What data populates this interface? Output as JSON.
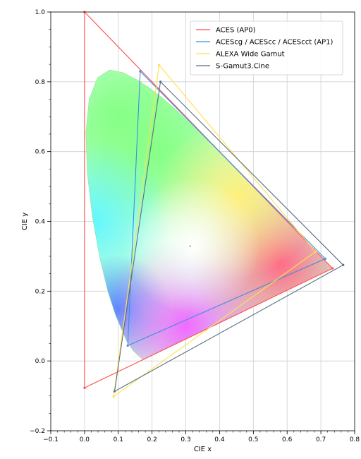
{
  "chart_data": {
    "type": "line",
    "xlabel": "CIE x",
    "ylabel": "CIE y",
    "xlim": [
      -0.1,
      0.8
    ],
    "ylim": [
      -0.2,
      1.0
    ],
    "xticks": [
      "−0.1",
      "0.0",
      "0.1",
      "0.2",
      "0.3",
      "0.4",
      "0.5",
      "0.6",
      "0.7",
      "0.8"
    ],
    "yticks": [
      "−0.2",
      "0.0",
      "0.2",
      "0.4",
      "0.6",
      "0.8",
      "1.0"
    ],
    "grid": true,
    "legend_position": "top-right",
    "white_point": [
      0.3127,
      0.329
    ],
    "spectral_locus": [
      [
        0.1741,
        0.005
      ],
      [
        0.1738,
        0.0049
      ],
      [
        0.1733,
        0.0048
      ],
      [
        0.1726,
        0.0048
      ],
      [
        0.1714,
        0.0051
      ],
      [
        0.1689,
        0.0069
      ],
      [
        0.1644,
        0.0109
      ],
      [
        0.1566,
        0.0177
      ],
      [
        0.144,
        0.0297
      ],
      [
        0.1241,
        0.0578
      ],
      [
        0.0913,
        0.1327
      ],
      [
        0.0687,
        0.2007
      ],
      [
        0.0454,
        0.295
      ],
      [
        0.0235,
        0.4127
      ],
      [
        0.0082,
        0.5384
      ],
      [
        0.0039,
        0.6548
      ],
      [
        0.0139,
        0.7502
      ],
      [
        0.0389,
        0.812
      ],
      [
        0.0743,
        0.8338
      ],
      [
        0.1142,
        0.8262
      ],
      [
        0.1547,
        0.8059
      ],
      [
        0.1929,
        0.7816
      ],
      [
        0.2296,
        0.7543
      ],
      [
        0.2658,
        0.7243
      ],
      [
        0.3016,
        0.6923
      ],
      [
        0.3373,
        0.6589
      ],
      [
        0.3731,
        0.6245
      ],
      [
        0.4087,
        0.5896
      ],
      [
        0.4441,
        0.5547
      ],
      [
        0.4788,
        0.5202
      ],
      [
        0.5125,
        0.4866
      ],
      [
        0.5448,
        0.4544
      ],
      [
        0.5752,
        0.4242
      ],
      [
        0.6029,
        0.3965
      ],
      [
        0.627,
        0.3725
      ],
      [
        0.6482,
        0.3514
      ],
      [
        0.6658,
        0.334
      ],
      [
        0.6801,
        0.3197
      ],
      [
        0.6915,
        0.3083
      ],
      [
        0.7006,
        0.2993
      ],
      [
        0.7079,
        0.292
      ],
      [
        0.714,
        0.2859
      ],
      [
        0.719,
        0.2809
      ],
      [
        0.723,
        0.277
      ],
      [
        0.726,
        0.274
      ],
      [
        0.7283,
        0.2717
      ],
      [
        0.73,
        0.27
      ],
      [
        0.7311,
        0.2689
      ],
      [
        0.732,
        0.268
      ],
      [
        0.7327,
        0.2673
      ],
      [
        0.7334,
        0.2666
      ],
      [
        0.734,
        0.266
      ],
      [
        0.7344,
        0.2656
      ],
      [
        0.7346,
        0.2654
      ],
      [
        0.7347,
        0.2653
      ]
    ],
    "series": [
      {
        "name": "ACES (AP0)",
        "color": "#ff4d4d",
        "points": [
          [
            0.7347,
            0.2653
          ],
          [
            0.0,
            1.0
          ],
          [
            0.0001,
            -0.077
          ]
        ]
      },
      {
        "name": "ACEScg / ACEScc / ACEScct (AP1)",
        "color": "#3a8fe0",
        "points": [
          [
            0.713,
            0.293
          ],
          [
            0.165,
            0.83
          ],
          [
            0.128,
            0.044
          ]
        ]
      },
      {
        "name": "ALEXA Wide Gamut",
        "color": "#ffe14d",
        "points": [
          [
            0.684,
            0.313
          ],
          [
            0.221,
            0.848
          ],
          [
            0.0861,
            -0.102
          ]
        ]
      },
      {
        "name": "S-Gamut3.Cine",
        "color": "#5a6e82",
        "points": [
          [
            0.766,
            0.275
          ],
          [
            0.225,
            0.8
          ],
          [
            0.089,
            -0.087
          ]
        ]
      }
    ]
  }
}
